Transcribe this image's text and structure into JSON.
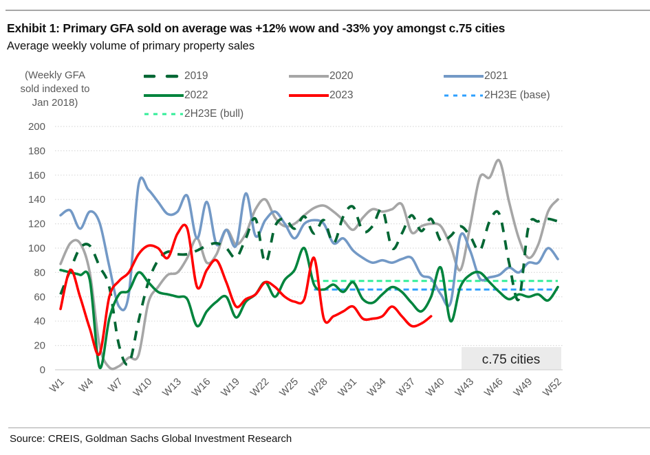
{
  "header": {
    "title": "Exhibit 1:  Primary GFA sold on average was +12% wow and -33% yoy amongst c.75 cities",
    "subtitle": "Average weekly volume of primary property sales"
  },
  "footer": {
    "source": "Source: CREIS, Goldman Sachs Global Investment Research"
  },
  "chart_data": {
    "type": "line",
    "title": "Exhibit 1:  Primary GFA sold on average was +12% wow and -33% yoy amongst c.75 cities",
    "subtitle": "Average weekly volume of primary property sales",
    "ylabel_lines": [
      "(Weekly GFA",
      "sold indexed to",
      "Jan 2018)"
    ],
    "xlabel": "",
    "ylim": [
      0,
      200
    ],
    "yticks": [
      0,
      20,
      40,
      60,
      80,
      100,
      120,
      140,
      160,
      180,
      200
    ],
    "x_categories_count": 52,
    "xtick_labels": [
      "W1",
      "W4",
      "W7",
      "W10",
      "W13",
      "W16",
      "W19",
      "W22",
      "W25",
      "W28",
      "W31",
      "W34",
      "W37",
      "W40",
      "W43",
      "W46",
      "W49",
      "W52"
    ],
    "xtick_weeks": [
      1,
      4,
      7,
      10,
      13,
      16,
      19,
      22,
      25,
      28,
      31,
      34,
      37,
      40,
      43,
      46,
      49,
      52
    ],
    "grid": "horizontal-dotted",
    "legend_placement": "top",
    "annotation": "c.75 cities",
    "series": [
      {
        "name": "2019",
        "color": "#006633",
        "style": "long-dash",
        "values": [
          62,
          82,
          100,
          102,
          85,
          68,
          20,
          5,
          40,
          72,
          90,
          97,
          95,
          95,
          98,
          102,
          104,
          100,
          92,
          108,
          124,
          88,
          118,
          124,
          116,
          126,
          112,
          123,
          104,
          126,
          134,
          114,
          118,
          132,
          100,
          112,
          127,
          114,
          124,
          106,
          110,
          118,
          110,
          98,
          122,
          128,
          88,
          58,
          118,
          122,
          124,
          122
        ]
      },
      {
        "name": "2020",
        "color": "#a6a6a6",
        "style": "solid",
        "values": [
          87,
          104,
          104,
          80,
          20,
          2,
          3,
          10,
          12,
          55,
          68,
          78,
          80,
          92,
          108,
          88,
          95,
          115,
          103,
          112,
          132,
          140,
          125,
          118,
          120,
          127,
          133,
          135,
          130,
          123,
          115,
          125,
          132,
          130,
          132,
          136,
          113,
          118,
          120,
          118,
          102,
          82,
          118,
          158,
          158,
          172,
          138,
          108,
          92,
          103,
          130,
          140
        ]
      },
      {
        "name": "2021",
        "color": "#7399c6",
        "style": "solid",
        "values": [
          127,
          131,
          116,
          130,
          121,
          85,
          52,
          62,
          152,
          148,
          138,
          128,
          130,
          143,
          108,
          138,
          103,
          115,
          102,
          145,
          110,
          123,
          130,
          120,
          108,
          120,
          123,
          120,
          104,
          108,
          98,
          92,
          88,
          90,
          88,
          91,
          92,
          78,
          75,
          62,
          55,
          110,
          98,
          75,
          76,
          78,
          84,
          80,
          88,
          88,
          100,
          91
        ]
      },
      {
        "name": "2022",
        "color": "#00843d",
        "style": "solid",
        "values": [
          82,
          80,
          78,
          74,
          2,
          42,
          62,
          65,
          80,
          72,
          64,
          62,
          60,
          58,
          36,
          48,
          56,
          60,
          43,
          56,
          62,
          72,
          60,
          74,
          82,
          100,
          70,
          66,
          70,
          64,
          72,
          58,
          55,
          62,
          68,
          64,
          55,
          48,
          60,
          84,
          40,
          68,
          78,
          80,
          72,
          64,
          58,
          62,
          60,
          62,
          57,
          68
        ]
      },
      {
        "name": "2023",
        "color": "#ff0000",
        "style": "solid",
        "values": [
          50,
          82,
          60,
          34,
          13,
          60,
          73,
          80,
          95,
          102,
          100,
          92,
          112,
          116,
          68,
          82,
          90,
          72,
          52,
          58,
          62,
          72,
          68,
          60,
          56,
          58,
          92,
          42,
          44,
          48,
          52,
          42,
          42,
          44,
          52,
          44,
          36,
          38,
          44,
          null,
          null,
          null,
          null,
          null,
          null,
          null,
          null,
          null,
          null,
          null,
          null,
          null
        ]
      },
      {
        "name": "2H23E (base)",
        "color": "#2ea0ff",
        "style": "short-dash",
        "values": [
          null,
          null,
          null,
          null,
          null,
          null,
          null,
          null,
          null,
          null,
          null,
          null,
          null,
          null,
          null,
          null,
          null,
          null,
          null,
          null,
          null,
          null,
          null,
          null,
          null,
          null,
          66,
          66,
          66,
          66,
          66,
          66,
          66,
          66,
          66,
          66,
          66,
          66,
          66,
          66,
          66,
          66,
          66,
          66,
          66,
          66,
          66,
          66,
          66,
          66,
          66,
          66
        ]
      },
      {
        "name": "2H23E (bull)",
        "color": "#33ee99",
        "style": "short-dash",
        "values": [
          null,
          null,
          null,
          null,
          null,
          null,
          null,
          null,
          null,
          null,
          null,
          null,
          null,
          null,
          null,
          null,
          null,
          null,
          null,
          null,
          null,
          null,
          null,
          null,
          null,
          null,
          73,
          73,
          73,
          73,
          73,
          73,
          73,
          73,
          73,
          73,
          73,
          73,
          73,
          73,
          73,
          73,
          73,
          73,
          73,
          73,
          73,
          73,
          73,
          73,
          73,
          73
        ]
      }
    ]
  }
}
